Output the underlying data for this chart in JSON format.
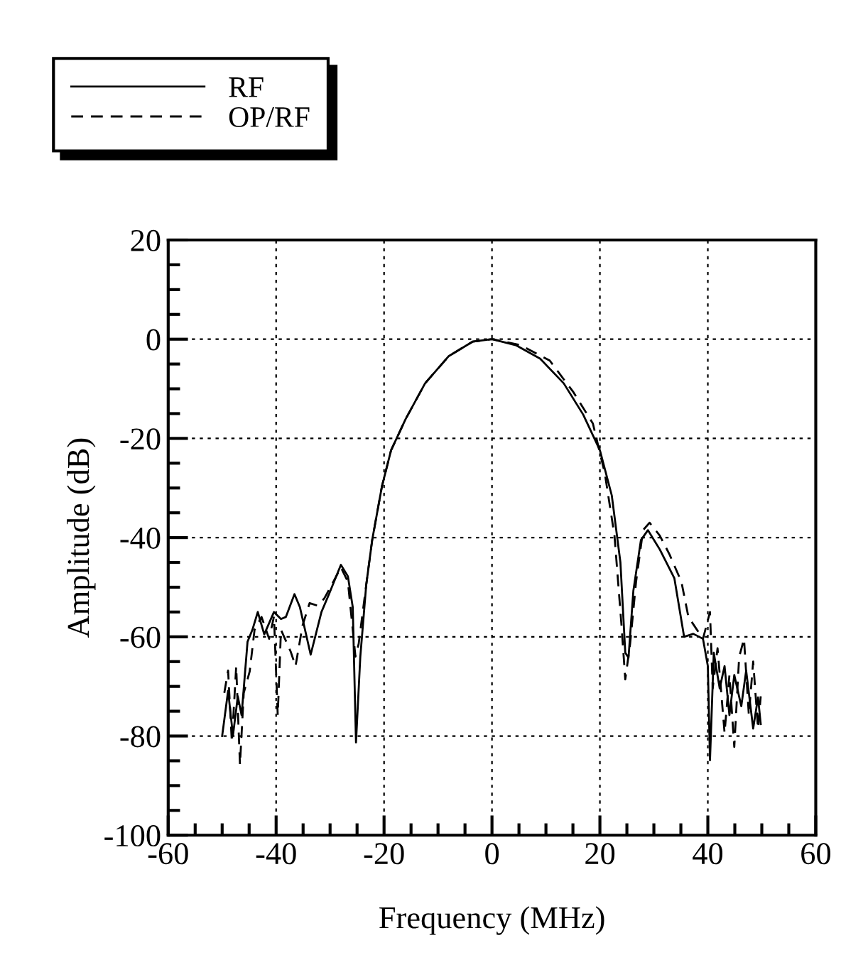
{
  "chart_data": {
    "type": "line",
    "xlabel": "Frequency (MHz)",
    "ylabel": "Amplitude (dB)",
    "xlim": [
      -60,
      60
    ],
    "xticks": [
      -60,
      -40,
      -20,
      0,
      20,
      40,
      60
    ],
    "ylim": [
      -100,
      20
    ],
    "yticks": [
      -100,
      -80,
      -60,
      -40,
      -20,
      0,
      20
    ],
    "grid": true,
    "legend": "top left",
    "marker": "none",
    "series": [
      {
        "name": "RF",
        "color": "#000000",
        "line_style": "solid",
        "x": [
          -50,
          -48.9,
          -48,
          -47.1,
          -46.4,
          -45.3,
          -44.4,
          -43.4,
          -42.2,
          -40.4,
          -39.1,
          -38.2,
          -36.6,
          -35.6,
          -33.6,
          -31.6,
          -30.2,
          -28,
          -26.7,
          -25.8,
          -25.2,
          -24.4,
          -23.3,
          -22.2,
          -20.4,
          -18.7,
          -16,
          -12.4,
          -8,
          -3.6,
          0,
          4.4,
          8.9,
          13.3,
          16.9,
          20,
          22.2,
          23.8,
          24.7,
          25.3,
          26.2,
          27.6,
          28.9,
          31.1,
          33.8,
          35.6,
          37.3,
          39.1,
          40,
          40.4,
          41.1,
          42.2,
          43.1,
          44,
          44.9,
          46.2,
          47.1,
          48.4,
          49.3,
          49.8
        ],
        "values": [
          -80,
          -70.9,
          -79.9,
          -72,
          -75.8,
          -61,
          -58.6,
          -55,
          -59.5,
          -55,
          -56.4,
          -56,
          -51.4,
          -54,
          -63.6,
          -55,
          -51.4,
          -45.5,
          -47.8,
          -54,
          -81.3,
          -64,
          -49.5,
          -40.5,
          -29.7,
          -22.4,
          -16.1,
          -8.9,
          -3.4,
          -0.5,
          0,
          -1.2,
          -3.9,
          -8.9,
          -15.2,
          -22.4,
          -31.5,
          -45,
          -63.2,
          -64.2,
          -50.7,
          -40.5,
          -38.5,
          -42.4,
          -48.2,
          -60,
          -59.4,
          -60.4,
          -65.9,
          -84.9,
          -63.2,
          -70.4,
          -65.9,
          -75.8,
          -67.7,
          -74,
          -66.8,
          -78.5,
          -72.2,
          -77.6
        ]
      },
      {
        "name": "OP/RF",
        "color": "#000000",
        "line_style": "dashed",
        "x": [
          -49.6,
          -48.9,
          -48.2,
          -47.4,
          -46.7,
          -46,
          -44.9,
          -44,
          -42.7,
          -41.3,
          -40.4,
          -39.7,
          -39.1,
          -37.3,
          -36.4,
          -35.1,
          -33.8,
          -32.4,
          -31.1,
          -29.3,
          -28,
          -26.7,
          -25.3,
          -24.7,
          -23.3,
          -22.2,
          -20.4,
          -18.7,
          -16,
          -12.4,
          -8,
          -3.6,
          0,
          5.3,
          10.7,
          15.1,
          18.7,
          20.9,
          22.7,
          24,
          24.7,
          25.6,
          26.7,
          28,
          29.2,
          31.1,
          32.9,
          35.1,
          36.4,
          39.1,
          40.4,
          40.9,
          41.8,
          43.1,
          44,
          44.9,
          45.8,
          46.7,
          47.6,
          48.4,
          49.3,
          49.8
        ],
        "values": [
          -71.3,
          -66.8,
          -81.3,
          -66,
          -85.8,
          -71.3,
          -67,
          -58.6,
          -56,
          -60.4,
          -55.9,
          -75.8,
          -58.6,
          -63,
          -65.9,
          -57.7,
          -53.2,
          -53.7,
          -52.3,
          -48.7,
          -46,
          -48.9,
          -64,
          -61.4,
          -49.5,
          -40.5,
          -29.7,
          -22.4,
          -16.1,
          -8.9,
          -3.4,
          -0.5,
          0,
          -1.2,
          -4.3,
          -10.7,
          -17,
          -27,
          -39.6,
          -57.7,
          -68.6,
          -61.4,
          -48.9,
          -38.5,
          -37,
          -39.6,
          -43.4,
          -48.9,
          -56,
          -60.4,
          -55,
          -70.4,
          -62.3,
          -79.4,
          -67.7,
          -82.2,
          -64.1,
          -60.4,
          -75.8,
          -65,
          -78.5,
          -72
        ]
      }
    ]
  }
}
